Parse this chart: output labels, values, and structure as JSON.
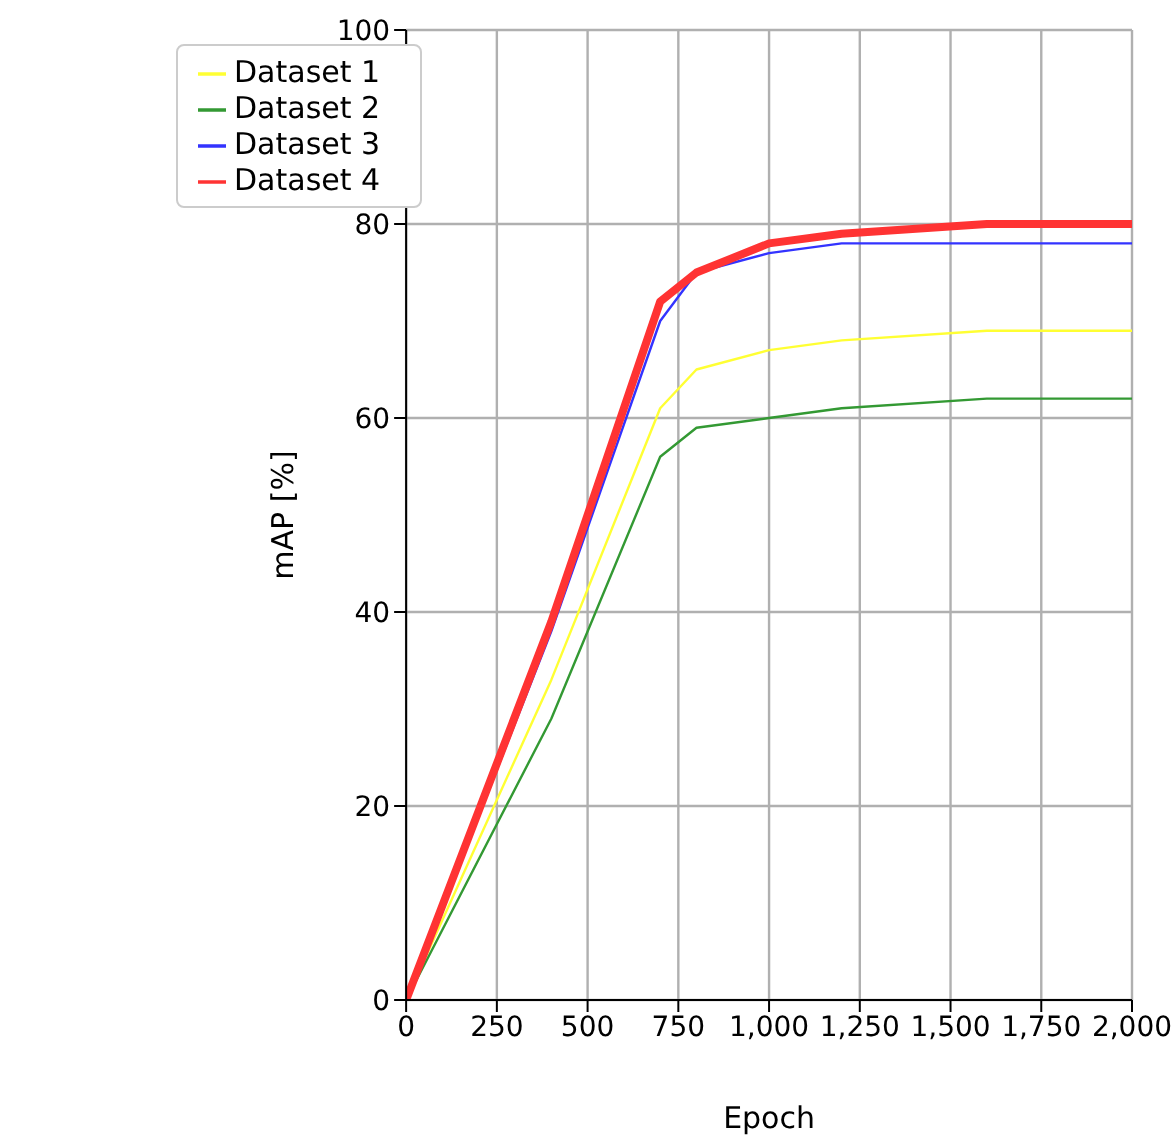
{
  "chart_data": {
    "type": "line",
    "xlabel": "Epoch",
    "ylabel": "mAP [%]",
    "x": [
      0,
      400,
      700,
      800,
      1000,
      1200,
      1600,
      2000
    ],
    "series": [
      {
        "name": "Dataset 1",
        "color": "#ffff33",
        "values": [
          0,
          33,
          61,
          65,
          67,
          68,
          69,
          69
        ]
      },
      {
        "name": "Dataset 2",
        "color": "#339933",
        "values": [
          0,
          29,
          56,
          59,
          60,
          61,
          62,
          62
        ]
      },
      {
        "name": "Dataset 3",
        "color": "#3333ff",
        "values": [
          0,
          38,
          70,
          75,
          77,
          78,
          78,
          78
        ]
      },
      {
        "name": "Dataset 4",
        "color": "#ff3333",
        "values": [
          0,
          39,
          72,
          75,
          78,
          79,
          80,
          80
        ]
      }
    ],
    "xlim": [
      0,
      2000
    ],
    "xticks": [
      0,
      250,
      500,
      750,
      {
        "value": 1000,
        "label": "1,000"
      },
      {
        "value": 1250,
        "label": "1,250"
      },
      {
        "value": 1500,
        "label": "1,500"
      },
      {
        "value": 1750,
        "label": "1,750"
      },
      {
        "value": 2000,
        "label": "2,000"
      }
    ],
    "ylim": [
      0,
      100
    ],
    "yticks": [
      0,
      20,
      40,
      60,
      80,
      100
    ],
    "grid": true,
    "legend": "top left",
    "marker": "none",
    "line_style": "solid"
  }
}
